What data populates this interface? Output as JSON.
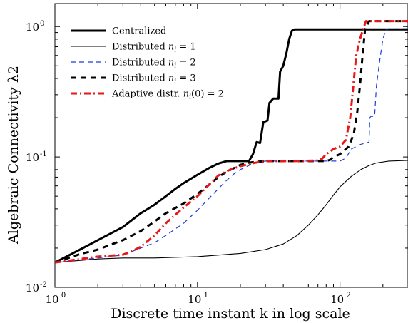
{
  "chart_data": {
    "type": "line",
    "title": "",
    "xlabel": "Discrete time instant k in log scale",
    "ylabel": "Algebraic Connectivity λ2",
    "xscale": "log",
    "yscale": "log",
    "xlim": [
      1,
      300
    ],
    "ylim": [
      0.01,
      1.5
    ],
    "xticks": [
      {
        "value": 1,
        "base": "10",
        "exp": "0"
      },
      {
        "value": 10,
        "base": "10",
        "exp": "1"
      },
      {
        "value": 100,
        "base": "10",
        "exp": "2"
      }
    ],
    "yticks": [
      {
        "value": 0.01,
        "base": "10",
        "exp": "-2"
      },
      {
        "value": 0.1,
        "base": "10",
        "exp": "-1"
      },
      {
        "value": 1,
        "base": "10",
        "exp": "0"
      }
    ],
    "grid": false,
    "legend_position": "top-left",
    "series": [
      {
        "name": "Centralized",
        "color": "#000000",
        "width": 3,
        "dash": "solid",
        "points": [
          [
            1,
            0.0155
          ],
          [
            1.5,
            0.0195
          ],
          [
            2,
            0.023
          ],
          [
            3,
            0.029
          ],
          [
            4,
            0.037
          ],
          [
            5,
            0.043
          ],
          [
            6,
            0.05
          ],
          [
            7,
            0.057
          ],
          [
            8,
            0.063
          ],
          [
            10,
            0.073
          ],
          [
            12,
            0.082
          ],
          [
            14,
            0.089
          ],
          [
            16,
            0.093
          ],
          [
            20,
            0.093
          ],
          [
            23,
            0.093
          ],
          [
            24.5,
            0.105
          ],
          [
            26,
            0.13
          ],
          [
            27.5,
            0.128
          ],
          [
            29,
            0.185
          ],
          [
            31,
            0.19
          ],
          [
            32,
            0.26
          ],
          [
            34,
            0.28
          ],
          [
            37,
            0.28
          ],
          [
            38,
            0.45
          ],
          [
            40,
            0.5
          ],
          [
            42,
            0.62
          ],
          [
            44,
            0.8
          ],
          [
            46,
            0.93
          ],
          [
            48,
            0.95
          ],
          [
            60,
            0.95
          ],
          [
            100,
            0.95
          ],
          [
            200,
            0.95
          ],
          [
            300,
            0.95
          ]
        ]
      },
      {
        "name": "Distributed n_i = 1",
        "color": "#000000",
        "width": 1.1,
        "dash": "solid",
        "points": [
          [
            1,
            0.0155
          ],
          [
            2,
            0.0165
          ],
          [
            3,
            0.0168
          ],
          [
            5,
            0.0168
          ],
          [
            10,
            0.0172
          ],
          [
            20,
            0.0182
          ],
          [
            30,
            0.0195
          ],
          [
            40,
            0.0215
          ],
          [
            50,
            0.025
          ],
          [
            60,
            0.03
          ],
          [
            70,
            0.036
          ],
          [
            80,
            0.043
          ],
          [
            90,
            0.051
          ],
          [
            100,
            0.059
          ],
          [
            120,
            0.071
          ],
          [
            140,
            0.08
          ],
          [
            160,
            0.086
          ],
          [
            180,
            0.09
          ],
          [
            220,
            0.093
          ],
          [
            300,
            0.094
          ]
        ]
      },
      {
        "name": "Distributed n_i = 2",
        "color": "#1f3cd6",
        "width": 1.2,
        "dash": "7,5",
        "points": [
          [
            1,
            0.0155
          ],
          [
            2,
            0.0168
          ],
          [
            3,
            0.0177
          ],
          [
            4,
            0.02
          ],
          [
            5,
            0.022
          ],
          [
            6,
            0.025
          ],
          [
            8,
            0.031
          ],
          [
            10,
            0.039
          ],
          [
            12,
            0.048
          ],
          [
            14,
            0.057
          ],
          [
            16,
            0.066
          ],
          [
            18,
            0.074
          ],
          [
            20,
            0.08
          ],
          [
            25,
            0.09
          ],
          [
            30,
            0.093
          ],
          [
            50,
            0.093
          ],
          [
            100,
            0.093
          ],
          [
            110,
            0.098
          ],
          [
            120,
            0.115
          ],
          [
            140,
            0.125
          ],
          [
            160,
            0.13
          ],
          [
            162,
            0.2
          ],
          [
            165,
            0.205
          ],
          [
            175,
            0.205
          ],
          [
            180,
            0.35
          ],
          [
            190,
            0.55
          ],
          [
            200,
            0.8
          ],
          [
            210,
            0.95
          ],
          [
            220,
            0.96
          ],
          [
            300,
            0.96
          ]
        ]
      },
      {
        "name": "Distributed n_i = 3",
        "color": "#000000",
        "width": 3,
        "dash": "8,6",
        "points": [
          [
            1,
            0.0155
          ],
          [
            1.5,
            0.018
          ],
          [
            2,
            0.0195
          ],
          [
            3,
            0.023
          ],
          [
            4,
            0.027
          ],
          [
            5,
            0.032
          ],
          [
            6,
            0.037
          ],
          [
            8,
            0.044
          ],
          [
            10,
            0.052
          ],
          [
            12,
            0.061
          ],
          [
            14,
            0.07
          ],
          [
            16,
            0.077
          ],
          [
            18,
            0.082
          ],
          [
            20,
            0.087
          ],
          [
            24,
            0.091
          ],
          [
            30,
            0.093
          ],
          [
            50,
            0.093
          ],
          [
            80,
            0.093
          ],
          [
            85,
            0.095
          ],
          [
            90,
            0.1
          ],
          [
            100,
            0.105
          ],
          [
            115,
            0.12
          ],
          [
            125,
            0.15
          ],
          [
            132,
            0.22
          ],
          [
            138,
            0.35
          ],
          [
            144,
            0.6
          ],
          [
            150,
            0.95
          ],
          [
            160,
            1.1
          ],
          [
            300,
            1.1
          ]
        ]
      },
      {
        "name": "Adaptive distr. n_i(0) = 2",
        "color": "#e41a1a",
        "width": 3,
        "dash": "9,4,2,4",
        "points": [
          [
            1,
            0.0155
          ],
          [
            2,
            0.0172
          ],
          [
            3,
            0.0178
          ],
          [
            3.5,
            0.019
          ],
          [
            4,
            0.0205
          ],
          [
            5,
            0.025
          ],
          [
            6,
            0.031
          ],
          [
            8,
            0.041
          ],
          [
            10,
            0.05
          ],
          [
            12,
            0.061
          ],
          [
            14,
            0.072
          ],
          [
            17,
            0.08
          ],
          [
            20,
            0.085
          ],
          [
            25,
            0.09
          ],
          [
            30,
            0.093
          ],
          [
            50,
            0.093
          ],
          [
            70,
            0.094
          ],
          [
            75,
            0.097
          ],
          [
            80,
            0.105
          ],
          [
            90,
            0.115
          ],
          [
            100,
            0.12
          ],
          [
            110,
            0.135
          ],
          [
            118,
            0.2
          ],
          [
            124,
            0.35
          ],
          [
            130,
            0.6
          ],
          [
            138,
            0.8
          ],
          [
            145,
            0.95
          ],
          [
            152,
            1.1
          ],
          [
            300,
            1.1
          ]
        ]
      }
    ]
  }
}
